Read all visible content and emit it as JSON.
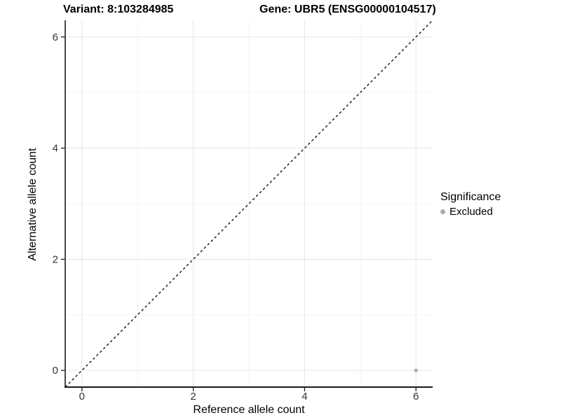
{
  "header": {
    "variant_title": "Variant: 8:103284985",
    "gene_title": "Gene: UBR5 (ENSG00000104517)"
  },
  "legend": {
    "title": "Significance",
    "items": [
      {
        "label": "Excluded",
        "color": "#ababab"
      }
    ]
  },
  "chart_data": {
    "type": "scatter",
    "title_left": "Variant: 8:103284985",
    "title_right": "Gene: UBR5 (ENSG00000104517)",
    "xlabel": "Reference allele count",
    "ylabel": "Alternative allele count",
    "xlim": [
      -0.3,
      6.3
    ],
    "ylim": [
      -0.3,
      6.3
    ],
    "xticks": [
      0,
      2,
      4,
      6
    ],
    "yticks": [
      0,
      2,
      4,
      6
    ],
    "xticks_minor": [
      1,
      3,
      5
    ],
    "yticks_minor": [
      1,
      3,
      5
    ],
    "grid": true,
    "legend_position": "right",
    "legend_title": "Significance",
    "series": [
      {
        "name": "Excluded",
        "color": "#ababab",
        "points": [
          {
            "x": 6,
            "y": 0
          }
        ]
      }
    ],
    "reference_line": {
      "type": "identity",
      "slope": 1,
      "intercept": 0,
      "style": "dashed",
      "color": "#000000"
    }
  },
  "styles": {
    "grid_major": "#e6e6e6",
    "grid_minor": "#f3f3f3",
    "axis_line": "#1a1a1a",
    "tick_text": "#333333",
    "background": "#ffffff"
  }
}
